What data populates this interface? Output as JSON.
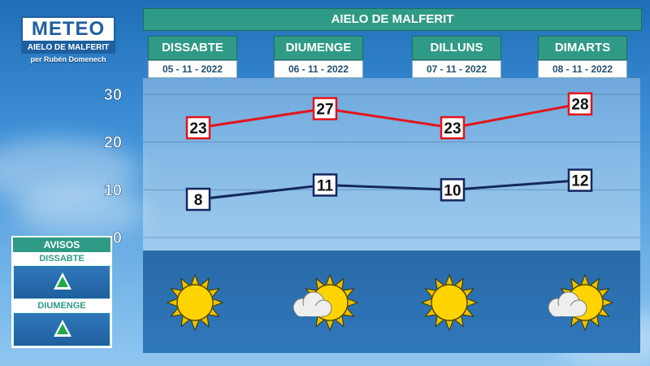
{
  "logo": {
    "title": "METEO",
    "subtitle": "AIELO DE MALFERIT",
    "author": "per Rubén Domenech"
  },
  "header": {
    "title": "AIELO DE MALFERIT"
  },
  "days": [
    {
      "name": "DISSABTE",
      "date": "05 - 11 - 2022",
      "icon": "sun-icon"
    },
    {
      "name": "DIUMENGE",
      "date": "06 - 11 - 2022",
      "icon": "sun-cloud-icon"
    },
    {
      "name": "DILLUNS",
      "date": "07 - 11 - 2022",
      "icon": "sun-icon"
    },
    {
      "name": "DIMARTS",
      "date": "08 - 11 - 2022",
      "icon": "sun-cloud-icon"
    }
  ],
  "avisos": {
    "title": "AVISOS",
    "items": [
      {
        "day": "DISSABTE",
        "level": "green"
      },
      {
        "day": "DIUMENGE",
        "level": "green"
      }
    ]
  },
  "colors": {
    "max": "#e3151c",
    "min": "#14285e",
    "teal": "#2f9a86",
    "warning_green": "#22a84a"
  },
  "chart_data": {
    "type": "line",
    "categories": [
      "DISSABTE",
      "DIUMENGE",
      "DILLUNS",
      "DIMARTS"
    ],
    "series": [
      {
        "values": [
          23,
          27,
          23,
          28
        ]
      },
      {
        "values": [
          8,
          11,
          10,
          12
        ]
      }
    ],
    "ylim": [
      0,
      30
    ],
    "yticks": [
      0,
      10,
      20,
      30
    ],
    "grid": true
  }
}
